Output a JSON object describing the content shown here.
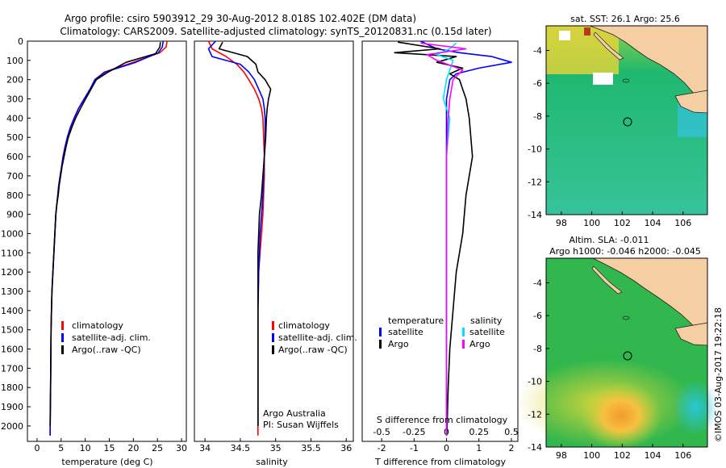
{
  "header": {
    "line1": "Argo profile: csiro 5903912_29 30-Aug-2012 8.018S 102.402E (DM data)",
    "line2": "Climatology: CARS2009. Satellite-adjusted climatology: synTS_20120831.nc (0.15d later)"
  },
  "timestamp": "©IMOS 03-Aug-2017 19:22:18",
  "colors": {
    "climatology": "#ff0000",
    "satellite": "#0000ff",
    "argo": "#000000",
    "salinity_sat": "#00e0ff",
    "salinity_argo": "#ff00ff"
  },
  "chart_data": [
    {
      "type": "line",
      "title": "",
      "xlabel": "temperature (deg C)",
      "ylabel": "",
      "xlim": [
        -2,
        31
      ],
      "ylim": [
        2080,
        0
      ],
      "xticks": [
        "0",
        "5",
        "10",
        "15",
        "20",
        "25",
        "30"
      ],
      "yticks": [
        "0",
        "100",
        "200",
        "300",
        "400",
        "500",
        "600",
        "700",
        "800",
        "900",
        "1000",
        "1100",
        "1200",
        "1300",
        "1400",
        "1500",
        "1600",
        "1700",
        "1800",
        "1900",
        "2000"
      ],
      "legend": [
        "climatology",
        "satellite-adj. clim.",
        "Argo(..raw -QC)"
      ],
      "series": [
        {
          "name": "climatology",
          "color": "#ff0000",
          "x": [
            27,
            26.8,
            25.5,
            20,
            14,
            12,
            11,
            9.8,
            8.6,
            7.7,
            6.9,
            6.3,
            5.8,
            5.4,
            5.1,
            4.8,
            4.5,
            4.3,
            4.1,
            3.9,
            3.7,
            3.5,
            3.3,
            3.1,
            3.0,
            2.9,
            2.8,
            2.7
          ],
          "y": [
            0,
            30,
            60,
            110,
            160,
            200,
            250,
            300,
            350,
            400,
            450,
            500,
            550,
            600,
            650,
            700,
            750,
            800,
            850,
            900,
            1000,
            1100,
            1200,
            1300,
            1400,
            1500,
            1800,
            2050
          ]
        },
        {
          "name": "satellite-adj. clim.",
          "color": "#0000ff",
          "x": [
            26.2,
            26.0,
            25.2,
            20.5,
            14.2,
            12,
            11,
            9.8,
            8.6,
            7.7,
            6.9,
            6.3,
            5.8,
            5.4,
            5.1,
            4.8,
            4.5,
            4.3,
            4.1,
            3.9,
            3.7,
            3.5,
            3.3,
            3.1,
            3.0,
            2.9,
            2.8,
            2.7
          ],
          "y": [
            0,
            30,
            60,
            110,
            160,
            200,
            250,
            300,
            350,
            400,
            450,
            500,
            550,
            600,
            650,
            700,
            750,
            800,
            850,
            900,
            1000,
            1100,
            1200,
            1300,
            1400,
            1500,
            1800,
            2050
          ]
        },
        {
          "name": "Argo(..raw -QC)",
          "color": "#000000",
          "x": [
            25.6,
            25.5,
            24.6,
            18.5,
            14.8,
            12.3,
            11.2,
            10.1,
            9.0,
            8.0,
            7.2,
            6.5,
            6.0,
            5.6,
            5.2,
            4.9,
            4.6,
            4.4,
            4.1,
            3.9,
            3.7,
            3.5,
            3.3,
            3.1,
            3.0,
            2.9,
            2.8,
            2.7
          ],
          "y": [
            5,
            30,
            65,
            110,
            160,
            200,
            250,
            300,
            350,
            400,
            450,
            500,
            550,
            600,
            650,
            700,
            750,
            800,
            850,
            900,
            1000,
            1100,
            1200,
            1300,
            1400,
            1500,
            1800,
            2000
          ]
        }
      ]
    },
    {
      "type": "line",
      "title": "",
      "xlabel": "salinity",
      "ylabel": "",
      "xlim": [
        33.85,
        36.1
      ],
      "ylim": [
        2080,
        0
      ],
      "xticks": [
        "34",
        "34.5",
        "35",
        "35.5",
        "36"
      ],
      "legend": [
        "climatology",
        "satellite-adj. clim.",
        "Argo(..raw -QC)"
      ],
      "annotations": [
        "Argo Australia",
        "PI: Susan Wijffels"
      ],
      "series": [
        {
          "name": "climatology",
          "color": "#ff0000",
          "x": [
            34.05,
            34.1,
            34.3,
            34.45,
            34.55,
            34.62,
            34.7,
            34.76,
            34.8,
            34.82,
            34.83,
            34.84,
            34.84,
            34.83,
            34.82,
            34.8,
            34.78,
            34.76,
            34.75,
            34.75,
            34.75,
            34.75
          ],
          "y": [
            0,
            40,
            80,
            120,
            160,
            200,
            250,
            300,
            350,
            400,
            500,
            600,
            700,
            800,
            900,
            1000,
            1100,
            1200,
            1400,
            1600,
            1800,
            2050
          ]
        },
        {
          "name": "satellite-adj. clim.",
          "color": "#0000ff",
          "x": [
            34.15,
            34.05,
            34.1,
            34.5,
            34.62,
            34.7,
            34.76,
            34.82,
            34.84,
            34.85,
            34.85,
            34.84,
            34.83,
            34.82,
            34.8,
            34.78,
            34.77,
            34.76,
            34.75,
            34.75,
            34.75
          ],
          "y": [
            0,
            40,
            80,
            120,
            160,
            200,
            250,
            300,
            350,
            400,
            500,
            600,
            700,
            800,
            900,
            1000,
            1100,
            1200,
            1400,
            1600,
            2000
          ]
        },
        {
          "name": "Argo(..raw -QC)",
          "color": "#000000",
          "x": [
            34.25,
            34.2,
            34.6,
            34.72,
            34.75,
            34.85,
            34.93,
            34.9,
            34.88,
            34.87,
            34.86,
            34.84,
            34.82,
            34.8,
            34.77,
            34.76,
            34.75,
            34.75,
            34.75,
            34.75
          ],
          "y": [
            5,
            40,
            80,
            120,
            160,
            200,
            250,
            300,
            350,
            400,
            500,
            600,
            700,
            800,
            900,
            1000,
            1100,
            1400,
            1600,
            2000
          ]
        }
      ]
    },
    {
      "type": "line",
      "title": "",
      "xlabel": "T difference from climatology",
      "x2label": "S difference from climatology",
      "ylabel": "",
      "xlim": [
        -2.6,
        2.2
      ],
      "ylim": [
        2080,
        0
      ],
      "xticks": [
        "-2",
        "-1",
        "0",
        "1",
        "2"
      ],
      "x2ticks": [
        "-0.5",
        "-0.25",
        "0",
        "0.25",
        "0.5"
      ],
      "legend": [
        "temperature",
        "satellite",
        "Argo",
        "salinity",
        "satellite",
        "Argo"
      ],
      "series": [
        {
          "name": "satellite",
          "color": "#0000ff",
          "x": [
            -0.8,
            -0.3,
            0.4,
            1.4,
            2.0,
            1.0,
            0.3,
            0.1,
            0.05,
            0,
            0,
            0,
            0,
            0,
            0,
            0,
            0,
            0,
            0,
            0
          ],
          "y": [
            0,
            40,
            60,
            80,
            110,
            140,
            170,
            200,
            250,
            300,
            400,
            600,
            800,
            1000,
            1200,
            1400,
            1600,
            1800,
            2000,
            2050
          ]
        },
        {
          "name": "Argo",
          "color": "#000000",
          "x": [
            -1.5,
            -0.2,
            -1.6,
            0.3,
            -0.3,
            0.5,
            0.1,
            0.4,
            0.5,
            0.6,
            0.7,
            0.8,
            0.6,
            0.5,
            0.3,
            0.2,
            0.1,
            0.05,
            0.02,
            0.01
          ],
          "y": [
            5,
            40,
            60,
            80,
            110,
            140,
            170,
            200,
            250,
            300,
            400,
            600,
            800,
            1000,
            1200,
            1400,
            1600,
            1800,
            2000,
            2050
          ]
        },
        {
          "name": "satellite (salinity)",
          "color": "#00e0ff",
          "x": [
            0.3,
            0.1,
            -0.3,
            0.2,
            0.1,
            0.0,
            -0.1,
            0.1,
            0.0,
            0.0,
            0.0,
            0.0,
            0.0,
            0.0,
            0.0,
            0.0
          ],
          "y": [
            10,
            40,
            70,
            100,
            150,
            200,
            300,
            400,
            600,
            800,
            1000,
            1200,
            1400,
            1600,
            1800,
            2050
          ]
        },
        {
          "name": "Argo (salinity)",
          "color": "#ff00ff",
          "x": [
            -0.8,
            0.6,
            -0.6,
            -0.3,
            0.5,
            0.2,
            0.1,
            0.05,
            0.0,
            0.0,
            0.0,
            0.0,
            0.0,
            0.0,
            0.0,
            0.0
          ],
          "y": [
            10,
            40,
            70,
            100,
            150,
            200,
            300,
            400,
            600,
            800,
            1000,
            1200,
            1400,
            1600,
            1800,
            2050
          ]
        }
      ]
    },
    {
      "type": "heatmap",
      "title": "sat. SST: 26.1  Argo: 25.6",
      "xlim": [
        97,
        107.6
      ],
      "ylim": [
        -14,
        -2.5
      ],
      "xticks": [
        "98",
        "100",
        "102",
        "104",
        "106"
      ],
      "yticks": [
        "-4",
        "-6",
        "-8",
        "-10",
        "-12",
        "-14"
      ],
      "marker": {
        "lon": 102.402,
        "lat": -8.018
      }
    },
    {
      "type": "heatmap",
      "title": "Altim. SLA: -0.011",
      "subtitle": "Argo h1000: -0.046 h2000: -0.045",
      "xlim": [
        97,
        107.6
      ],
      "ylim": [
        -14,
        -2.5
      ],
      "xticks": [
        "98",
        "100",
        "102",
        "104",
        "106"
      ],
      "yticks": [
        "-4",
        "-6",
        "-8",
        "-10",
        "-12",
        "-14"
      ],
      "marker": {
        "lon": 102.402,
        "lat": -8.018
      }
    }
  ]
}
